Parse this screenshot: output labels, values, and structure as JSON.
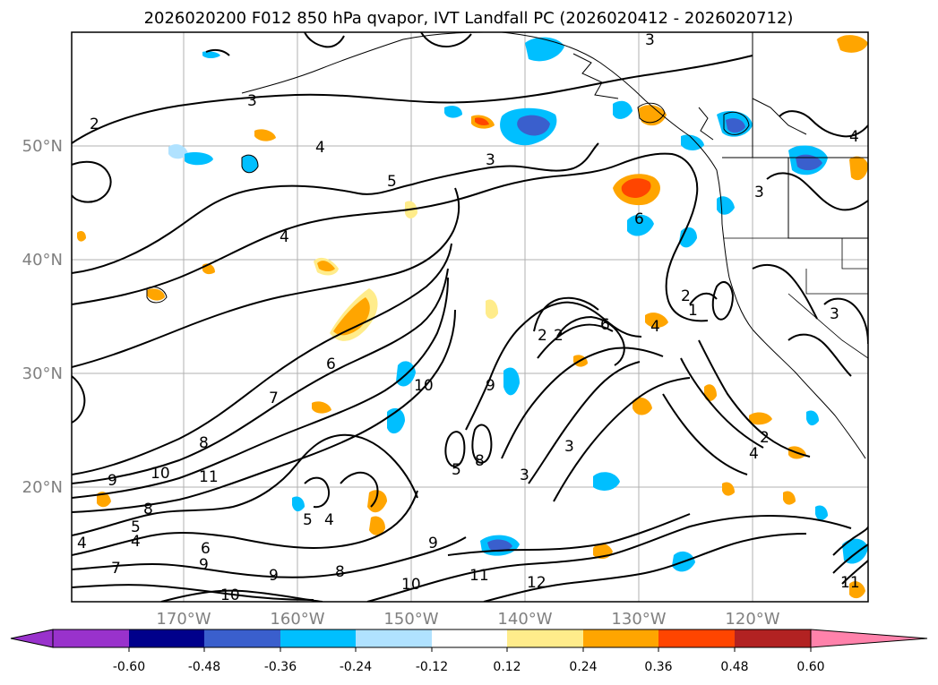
{
  "title": "2026020200 F012 850 hPa qvapor, IVT Landfall PC (2026020412 - 2026020712)",
  "map": {
    "lat_labels": [
      "50°N",
      "40°N",
      "30°N",
      "20°N"
    ],
    "lon_labels": [
      "170°W",
      "160°W",
      "150°W",
      "140°W",
      "130°W",
      "120°W"
    ],
    "lat_values": [
      50,
      40,
      30,
      20
    ],
    "lon_values": [
      -170,
      -160,
      -150,
      -140,
      -130,
      -120
    ],
    "contour_labels": [
      "2",
      "3",
      "4",
      "4",
      "5",
      "3",
      "6",
      "6",
      "4",
      "1",
      "2",
      "2",
      "6",
      "7",
      "8",
      "9",
      "10",
      "9",
      "11",
      "10",
      "8",
      "9",
      "3",
      "3",
      "5",
      "5",
      "4",
      "4",
      "5",
      "4",
      "6",
      "8",
      "7",
      "8",
      "9",
      "9",
      "10",
      "10",
      "11",
      "12",
      "2",
      "4",
      "3",
      "3",
      "3",
      "4",
      "2",
      "11"
    ]
  },
  "colorbar": {
    "ticks": [
      "-0.60",
      "-0.48",
      "-0.36",
      "-0.24",
      "-0.12",
      "0.12",
      "0.24",
      "0.36",
      "0.48",
      "0.60"
    ],
    "colors": [
      "#9932cc",
      "#00008b",
      "#3a5fcd",
      "#00bfff",
      "#b0e2ff",
      "#ffffff",
      "#ffec8b",
      "#ffa500",
      "#ff4500",
      "#b22222",
      "#ff82ab"
    ]
  },
  "palette": {
    "blue_light": "#b0e2ff",
    "blue_mid": "#00bfff",
    "blue_dark": "#3a5fcd",
    "yellow": "#ffec8b",
    "orange": "#ffa500",
    "red": "#ff4500"
  }
}
